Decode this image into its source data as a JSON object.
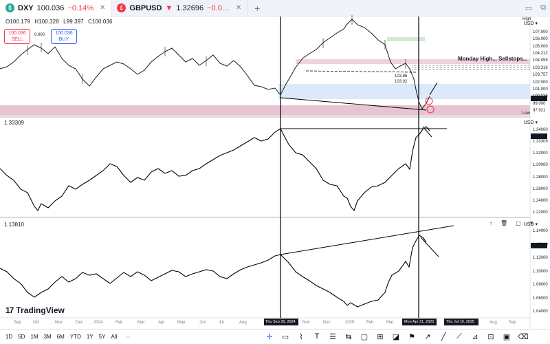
{
  "tabs": [
    {
      "symbol": "DXY",
      "price": "100.036",
      "change": "−0.14%",
      "badge_color": "#22ab94",
      "active": true
    },
    {
      "symbol": "GBPUSD",
      "price": "1.32696",
      "change": "−0.0…",
      "badge_color": "#f23645",
      "active": false
    }
  ],
  "ohlc": {
    "o": "O100.179",
    "h": "H100.328",
    "l": "L99.397",
    "c": "C100.036"
  },
  "trade": {
    "sell_price": "100.036",
    "sell_label": "SELL",
    "buy_price": "100.036",
    "buy_label": "BUY",
    "spread": "0.000"
  },
  "panes": {
    "top": {
      "currency": "USD",
      "high_label": "High",
      "low_label": "Low",
      "ticks": [
        "107.000",
        "106.000",
        "105.000",
        "104.212",
        "104.099",
        "103.316",
        "103.757",
        "102.000",
        "101.000",
        "100.036",
        "99.000",
        "97.921"
      ],
      "annotation": "Monday High... Sellstops...",
      "mid_labels": [
        "103.86",
        "103.02"
      ]
    },
    "middle": {
      "currency": "USD",
      "value": "1.33309",
      "ticks": [
        "1.34000",
        "1.33309",
        "1.32000",
        "1.30000",
        "1.28000",
        "1.26000",
        "1.24000",
        "1.22000"
      ]
    },
    "bottom": {
      "currency": "USD",
      "value": "1.13810",
      "ticks": [
        "1.14000",
        "1.13810",
        "1.12000",
        "1.10000",
        "1.08000",
        "1.06000",
        "1.04000"
      ]
    }
  },
  "time_axis": {
    "labels": [
      "Sep",
      "Oct",
      "Nov",
      "Dec",
      "2024",
      "Feb",
      "Mar",
      "Apr",
      "May",
      "Jun",
      "Jul",
      "Aug",
      "Nov",
      "Dec",
      "2025",
      "Feb",
      "Mar",
      "Aug",
      "Sep"
    ],
    "markers": [
      "Thu Sep 26, 2024",
      "Mon Apr 21, 2025",
      "Thu Jul 10, 2025"
    ]
  },
  "timeframes": [
    "1D",
    "5D",
    "1M",
    "3M",
    "6M",
    "YTD",
    "1Y",
    "5Y",
    "All"
  ],
  "brand": "TradingView",
  "colors": {
    "accent": "#2962ff",
    "down": "#f23645",
    "zone_pink": "#e8c4d2",
    "zone_blue": "#dbe9fb",
    "zone_green": "#d4e8d4"
  },
  "icons": [
    "crosshair-icon",
    "trendline-icon",
    "text-icon",
    "pattern-icon",
    "brush-icon",
    "measure-icon",
    "zoom-icon",
    "alert-icon",
    "layout-icon",
    "settings-icon"
  ]
}
